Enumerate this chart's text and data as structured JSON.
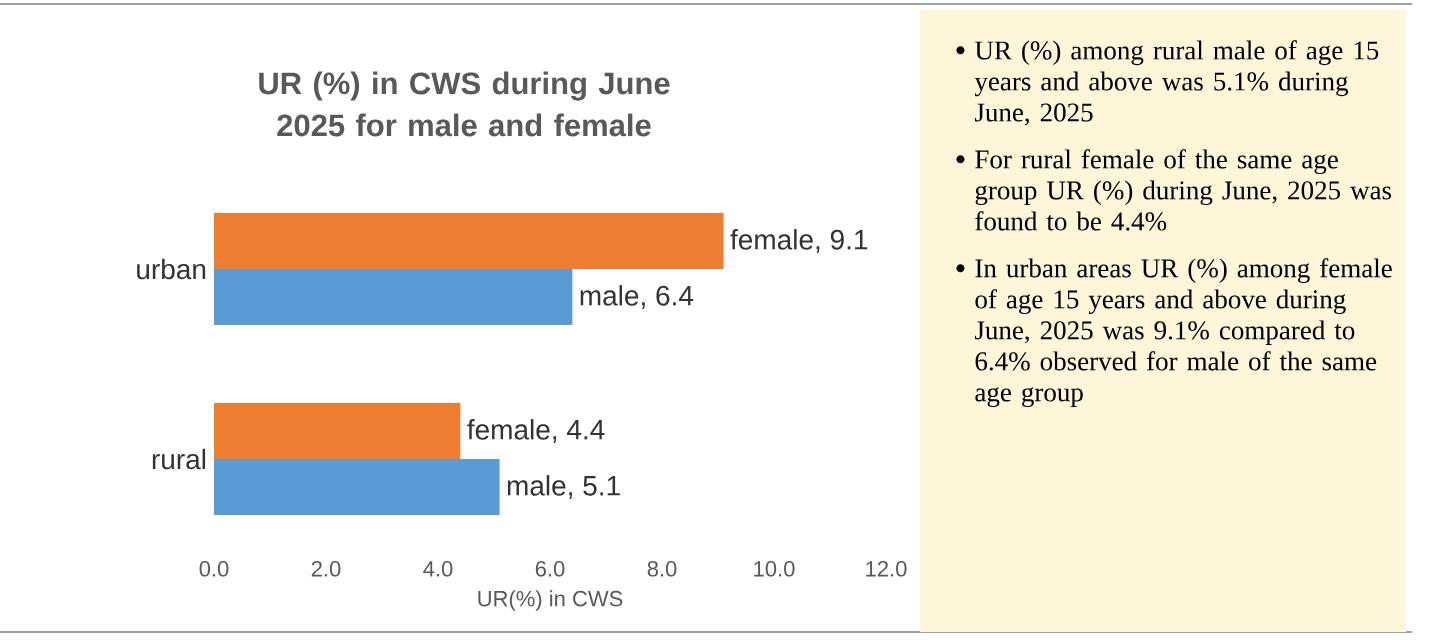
{
  "chart_data": [
    {
      "type": "bar",
      "orientation": "horizontal",
      "title": "UR  (%) in CWS during June 2025 for male and female",
      "xlabel": "UR(%) in CWS",
      "categories": [
        "urban",
        "rural"
      ],
      "series": [
        {
          "color": "#ed7d31",
          "values": [
            9.1,
            4.4
          ],
          "value_labels": [
            "female, 9.1",
            "female, 4.4"
          ]
        },
        {
          "color": "#5b9bd5",
          "values": [
            6.4,
            5.1
          ],
          "value_labels": [
            "male, 6.4",
            "male, 5.1"
          ]
        }
      ],
      "xlim": [
        0,
        12
      ],
      "xticks": [
        {
          "value": 0,
          "label": "0.0"
        },
        {
          "value": 2,
          "label": "2.0"
        },
        {
          "value": 4,
          "label": "4.0"
        },
        {
          "value": 6,
          "label": "6.0"
        },
        {
          "value": 8,
          "label": "8.0"
        },
        {
          "value": 10,
          "label": "10.0"
        },
        {
          "value": 12,
          "label": "12.0"
        }
      ]
    },
    {
      "type": "other",
      "annotations": [
        "UR (%) among rural male of age 15 years and above was 5.1% during June, 2025",
        "For rural female of the same age group UR (%) during June, 2025 was found to be 4.4%",
        "In urban areas UR (%) among female of age 15 years and above during June, 2025 was 9.1% compared to 6.4% observed for male of the same age group"
      ]
    }
  ]
}
